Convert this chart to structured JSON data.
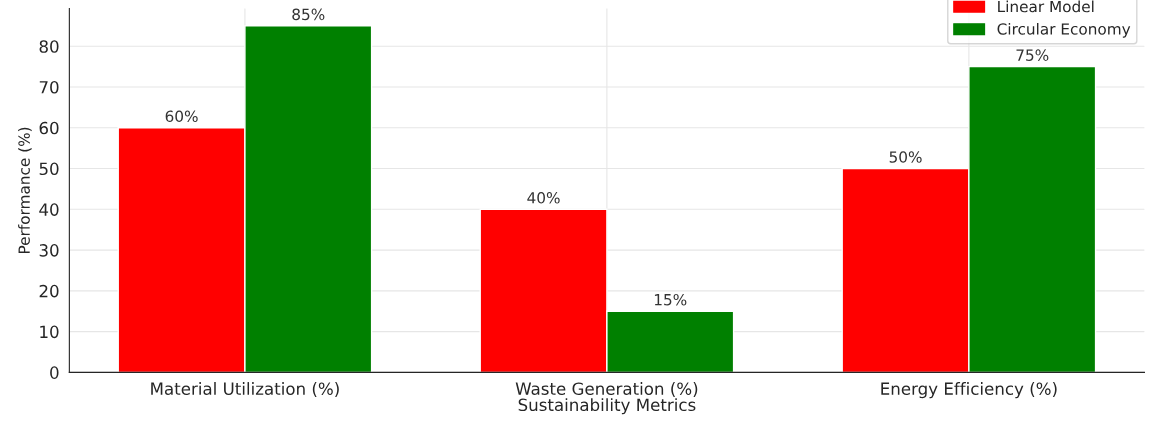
{
  "chart_data": {
    "type": "bar",
    "xlabel": "Sustainability Metrics",
    "ylabel": "Performance (%)",
    "categories": [
      "Material Utilization (%)",
      "Waste Generation (%)",
      "Energy Efficiency (%)"
    ],
    "series": [
      {
        "name": "Linear Model",
        "color": "#ff0000",
        "values": [
          60,
          40,
          50
        ],
        "value_labels": [
          "60%",
          "40%",
          "50%"
        ]
      },
      {
        "name": "Circular Economy",
        "color": "#008000",
        "values": [
          85,
          15,
          75
        ],
        "value_labels": [
          "85%",
          "15%",
          "75%"
        ]
      }
    ],
    "ylim": [
      0,
      89.25
    ],
    "yticks": [
      0,
      10,
      20,
      30,
      40,
      50,
      60,
      70,
      80
    ],
    "grid": true,
    "legend": "top right"
  }
}
